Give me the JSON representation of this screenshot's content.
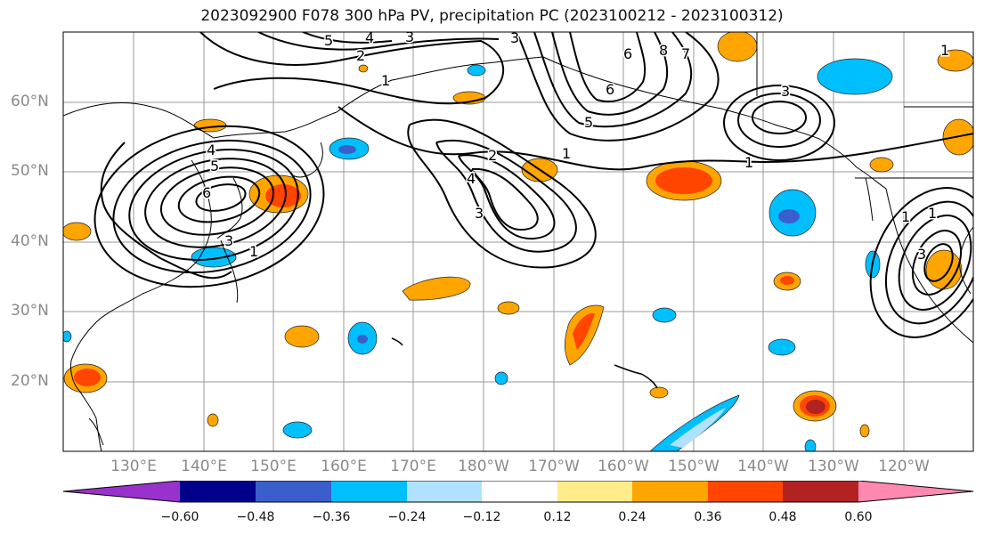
{
  "title": "2023092900 F078 300 hPa PV, precipitation PC (2023100212 - 2023100312)",
  "latitude_labels": [
    "60°N",
    "50°N",
    "40°N",
    "30°N",
    "20°N"
  ],
  "longitude_labels": [
    "130°E",
    "140°E",
    "150°E",
    "160°E",
    "170°E",
    "180°W",
    "170°W",
    "160°W",
    "150°W",
    "140°W",
    "130°W",
    "120°W"
  ],
  "colorbar": {
    "colors": [
      "#9932cc",
      "#00008b",
      "#3a5fcd",
      "#00bfff",
      "#b0e2ff",
      "#ffffff",
      "#ffec8b",
      "#ffa500",
      "#ff4500",
      "#b22222",
      "#ff88b0"
    ],
    "tick_labels": [
      "−0.60",
      "−0.48",
      "−0.36",
      "−0.24",
      "−0.12",
      "0.12",
      "0.24",
      "0.36",
      "0.48",
      "0.60"
    ]
  },
  "contour_labels": [
    "5",
    "4",
    "3",
    "2",
    "1",
    "3",
    "6",
    "7",
    "8",
    "6",
    "5",
    "3",
    "1",
    "2",
    "4",
    "3",
    "1",
    "1",
    "4",
    "5",
    "6",
    "3",
    "1",
    "1",
    "3",
    "1"
  ]
}
